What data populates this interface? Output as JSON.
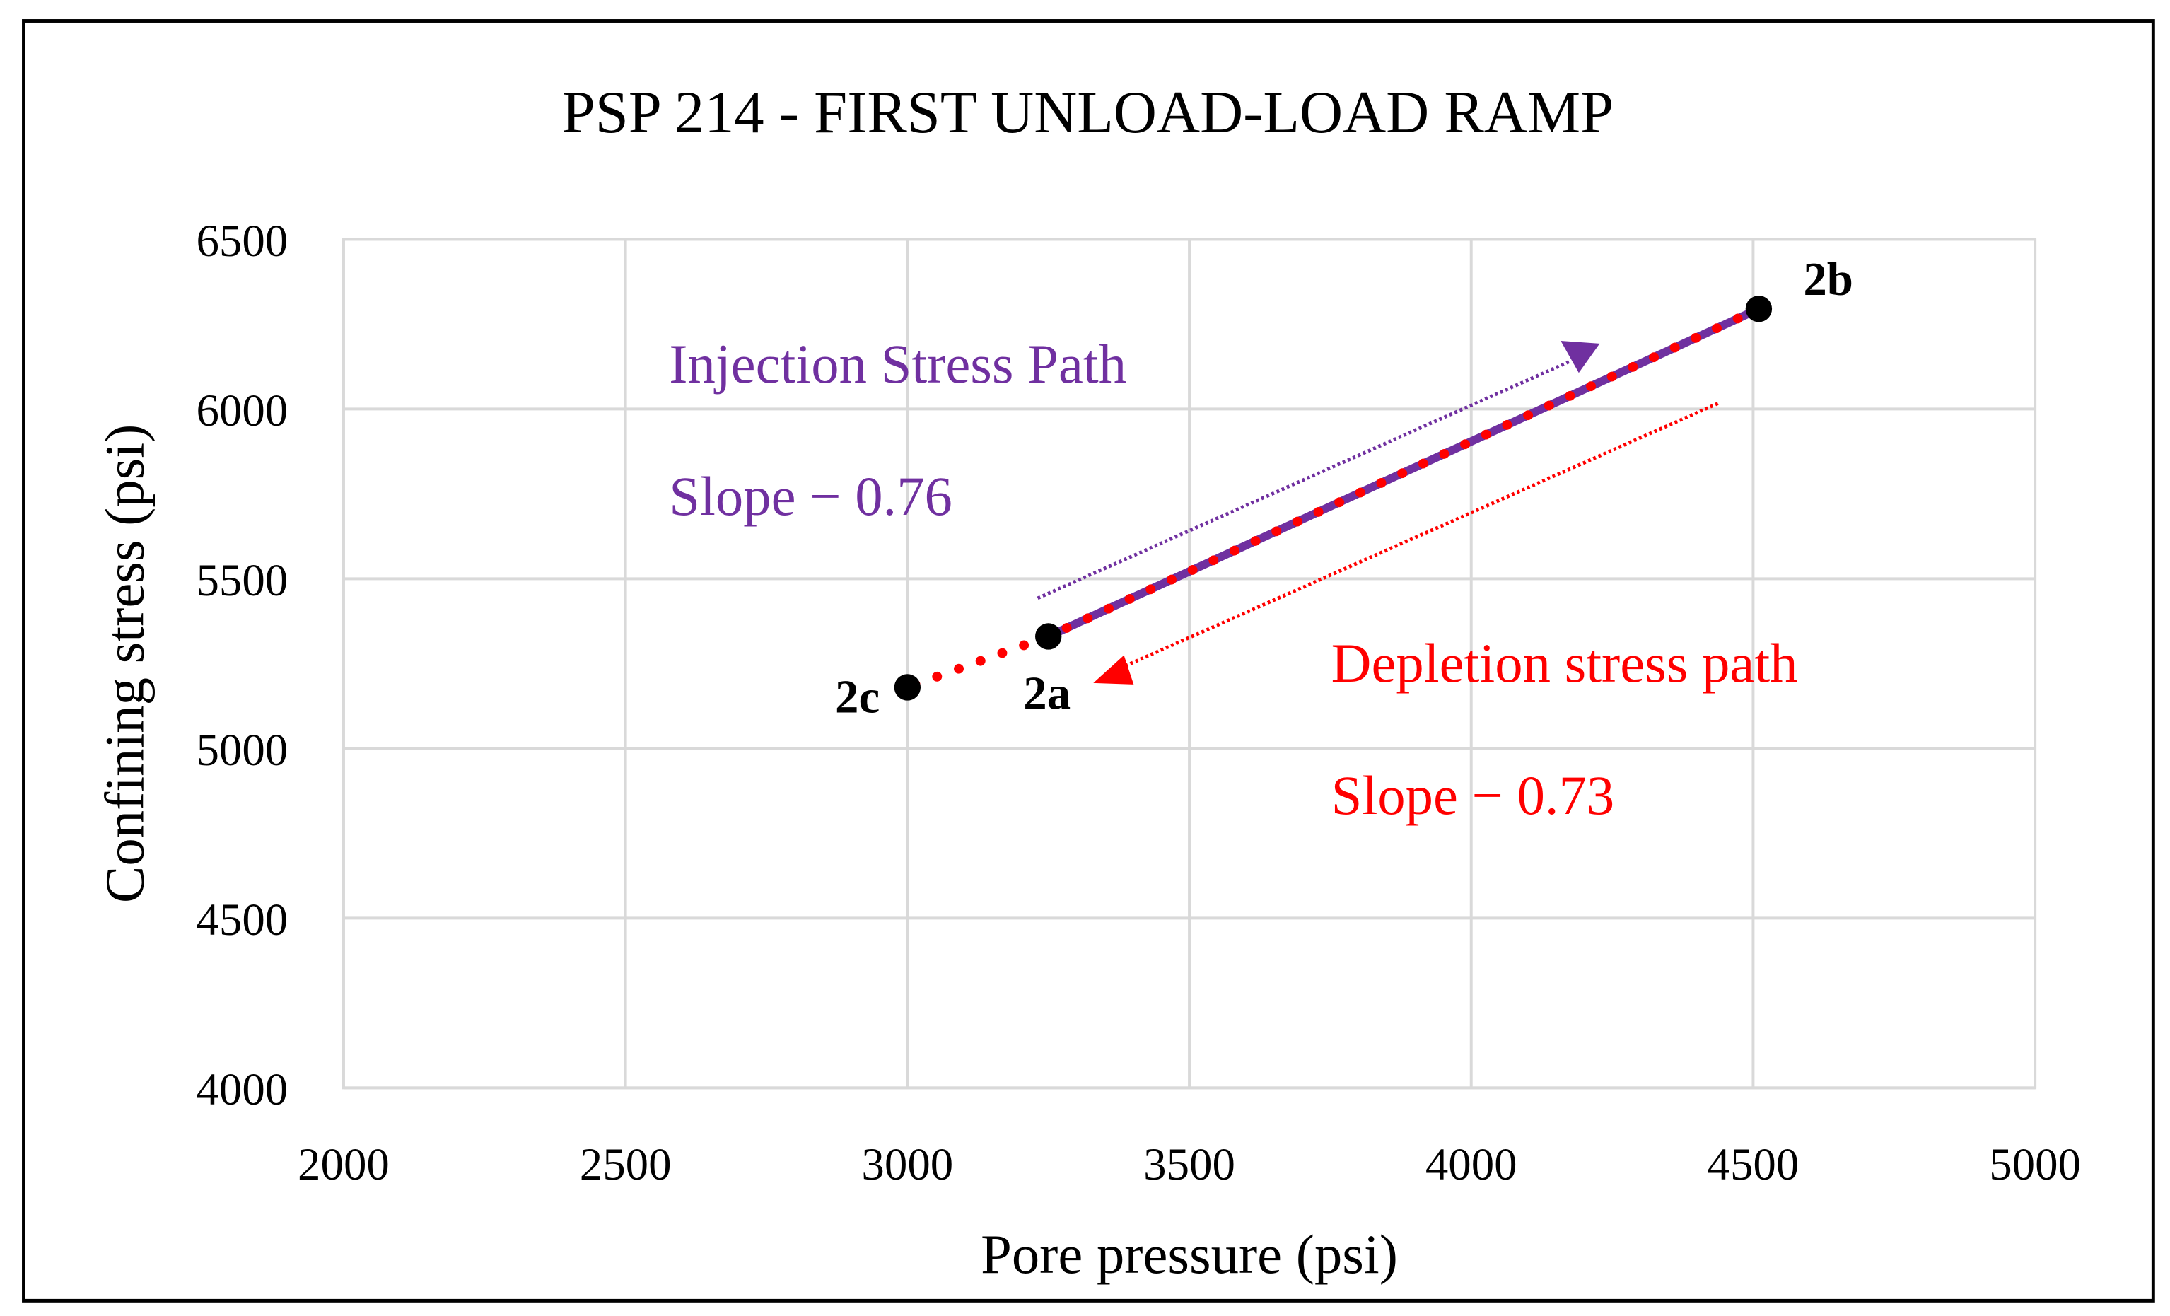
{
  "chart_data": {
    "type": "line",
    "title": "PSP 214 - FIRST UNLOAD-LOAD RAMP",
    "xlabel": "Pore pressure (psi)",
    "ylabel": "Confining stress (psi)",
    "xlim": [
      2000,
      5000
    ],
    "ylim": [
      4000,
      6500
    ],
    "xticks": [
      "2000",
      "2500",
      "3000",
      "3500",
      "4000",
      "4500",
      "5000"
    ],
    "yticks": [
      "4000",
      "4500",
      "5000",
      "5500",
      "6000",
      "6500"
    ],
    "grid": true,
    "series": [
      {
        "key": "injection",
        "style": "solid",
        "color": "#7030A0",
        "x": [
          3250,
          4510
        ],
        "y": [
          5330,
          6295
        ]
      },
      {
        "key": "depletion",
        "style": "round-dotted",
        "color": "#FF0000",
        "x": [
          4510,
          3250,
          3000
        ],
        "y": [
          6295,
          5330,
          5180
        ]
      }
    ],
    "points": [
      {
        "label": "2a",
        "x": 3250,
        "y": 5330
      },
      {
        "label": "2b",
        "x": 4510,
        "y": 6295
      },
      {
        "label": "2c",
        "x": 3000,
        "y": 5180
      }
    ],
    "annotations": {
      "injection_title": "Injection Stress Path",
      "injection_slope": "Slope − 0.76",
      "depletion_title": "Depletion stress path",
      "depletion_slope": "Slope − 0.73",
      "injection_color": "#7030A0",
      "depletion_color": "#FF0000"
    }
  }
}
